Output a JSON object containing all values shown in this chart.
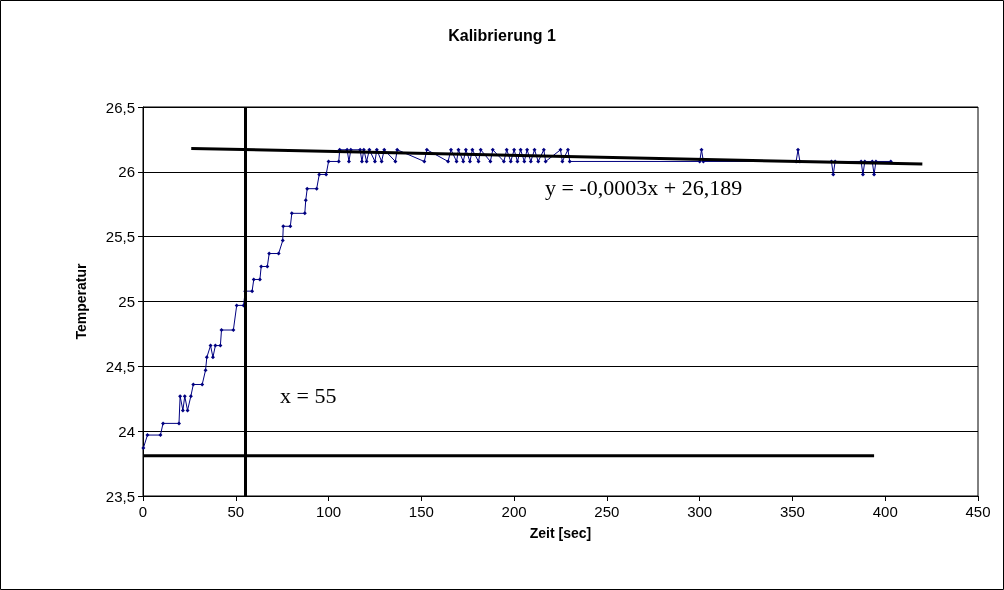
{
  "chart_data": {
    "type": "line",
    "title": "Kalibrierung 1",
    "xlabel": "Zeit [sec]",
    "ylabel": "Temperatur",
    "xlim": [
      0,
      450
    ],
    "xticks": [
      0,
      50,
      100,
      150,
      200,
      250,
      300,
      350,
      400,
      450
    ],
    "ylim": [
      23.5,
      26.5
    ],
    "yticks": [
      {
        "value": 23.5,
        "label": "23,5"
      },
      24,
      {
        "value": 24.5,
        "label": "24,5"
      },
      25,
      {
        "value": 25.5,
        "label": "25,5"
      },
      26,
      {
        "value": 26.5,
        "label": "26,5"
      }
    ],
    "grid": "y",
    "marker": "diamond",
    "line_style": "solid",
    "series": [
      {
        "color": "#000080",
        "x": [
          0.2,
          2.4,
          9.4,
          10.8,
          19.4,
          20,
          21.5,
          22.5,
          24,
          25.8,
          27.1,
          31.9,
          33.7,
          34.4,
          36.4,
          37.7,
          39,
          41.7,
          42.3,
          48.7,
          50.5,
          54.2,
          55.1,
          58.8,
          59.7,
          63,
          63.7,
          67,
          68,
          73.1,
          75.3,
          75.6,
          79.4,
          80.2,
          87.2,
          87.7,
          88.5,
          93.6,
          95,
          98.7,
          100,
          105.5,
          106,
          110,
          111,
          112,
          117,
          118,
          119,
          120.5,
          122,
          125,
          126,
          128.6,
          130,
          136,
          137,
          151.6,
          153,
          164.4,
          166,
          169,
          170,
          172.6,
          174,
          176.2,
          177.5,
          180.8,
          182,
          187.2,
          188.5,
          194.5,
          196,
          198.2,
          200,
          201.8,
          203.5,
          205.5,
          207,
          209,
          211,
          213,
          216,
          217,
          225,
          226,
          229,
          230,
          300,
          301,
          302,
          352,
          353,
          354,
          371,
          372,
          373,
          387,
          388,
          389,
          393,
          394,
          395,
          403
        ],
        "values": [
          23.87,
          23.97,
          23.97,
          24.06,
          24.06,
          24.27,
          24.16,
          24.27,
          24.16,
          24.27,
          24.36,
          24.36,
          24.47,
          24.57,
          24.66,
          24.57,
          24.66,
          24.66,
          24.78,
          24.78,
          24.97,
          24.97,
          25.08,
          25.08,
          25.17,
          25.17,
          25.27,
          25.27,
          25.37,
          25.37,
          25.47,
          25.58,
          25.58,
          25.68,
          25.68,
          25.78,
          25.87,
          25.87,
          25.98,
          25.98,
          26.08,
          26.08,
          26.17,
          26.17,
          26.08,
          26.17,
          26.17,
          26.08,
          26.17,
          26.08,
          26.17,
          26.08,
          26.17,
          26.08,
          26.17,
          26.08,
          26.17,
          26.08,
          26.17,
          26.08,
          26.17,
          26.08,
          26.17,
          26.08,
          26.17,
          26.08,
          26.17,
          26.08,
          26.17,
          26.08,
          26.17,
          26.08,
          26.17,
          26.08,
          26.17,
          26.08,
          26.17,
          26.08,
          26.17,
          26.08,
          26.17,
          26.08,
          26.17,
          26.08,
          26.17,
          26.08,
          26.17,
          26.08,
          26.08,
          26.17,
          26.08,
          26.08,
          26.17,
          26.08,
          26.08,
          25.98,
          26.08,
          26.08,
          25.98,
          26.08,
          26.08,
          25.98,
          26.08,
          26.08
        ]
      },
      {
        "type": "line",
        "color": "#000000",
        "marker": "none",
        "x": [
          26,
          420
        ],
        "values": [
          26.18,
          26.06
        ]
      },
      {
        "type": "line",
        "color": "#000000",
        "marker": "none",
        "x": [
          0,
          394
        ],
        "values": [
          23.81,
          23.81
        ]
      }
    ],
    "ref_lines": [
      {
        "axis": "x",
        "value": 55,
        "color": "#000000"
      }
    ],
    "annotations": [
      "y = -0,0003x + 26,189",
      "x = 55"
    ]
  }
}
